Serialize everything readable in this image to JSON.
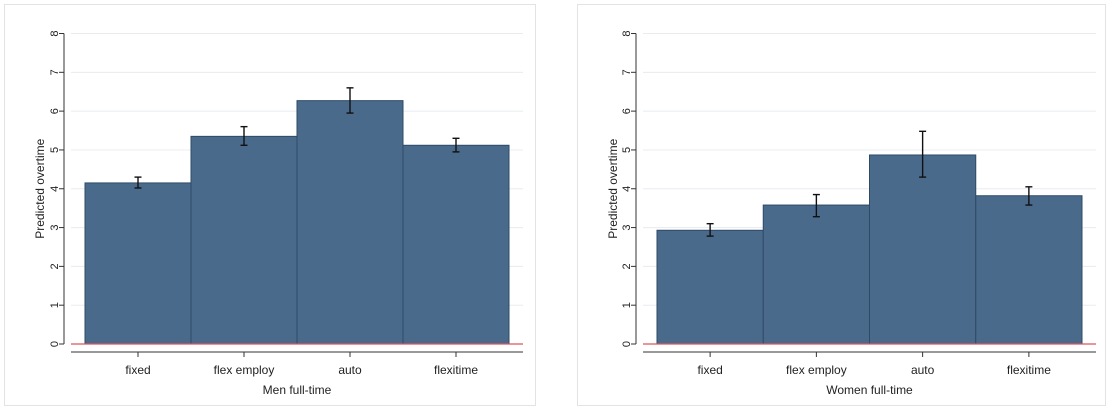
{
  "chart_data": [
    {
      "type": "bar",
      "categories": [
        "fixed",
        "flex employ",
        "auto",
        "flexitime"
      ],
      "values": [
        4.15,
        5.35,
        6.27,
        5.12
      ],
      "error_low": [
        4.02,
        5.12,
        5.95,
        4.95
      ],
      "error_high": [
        4.3,
        5.6,
        6.6,
        5.3
      ],
      "xlabel": "Men full-time",
      "ylabel": "Predicted overtime",
      "ylim": [
        0,
        8
      ],
      "yticks": [
        "0",
        "1",
        "2",
        "3",
        "4",
        "5",
        "6",
        "7",
        "8"
      ],
      "grid": true,
      "bar_color": "#4a6a8c",
      "baseline_color": "#d9585d"
    },
    {
      "type": "bar",
      "categories": [
        "fixed",
        "flex employ",
        "auto",
        "flexitime"
      ],
      "values": [
        2.93,
        3.58,
        4.87,
        3.82
      ],
      "error_low": [
        2.78,
        3.28,
        4.3,
        3.58
      ],
      "error_high": [
        3.1,
        3.85,
        5.48,
        4.05
      ],
      "xlabel": "Women full-time",
      "ylabel": "Predicted overtime",
      "ylim": [
        0,
        8
      ],
      "yticks": [
        "0",
        "1",
        "2",
        "3",
        "4",
        "5",
        "6",
        "7",
        "8"
      ],
      "grid": true,
      "bar_color": "#4a6a8c",
      "baseline_color": "#d9585d"
    }
  ]
}
